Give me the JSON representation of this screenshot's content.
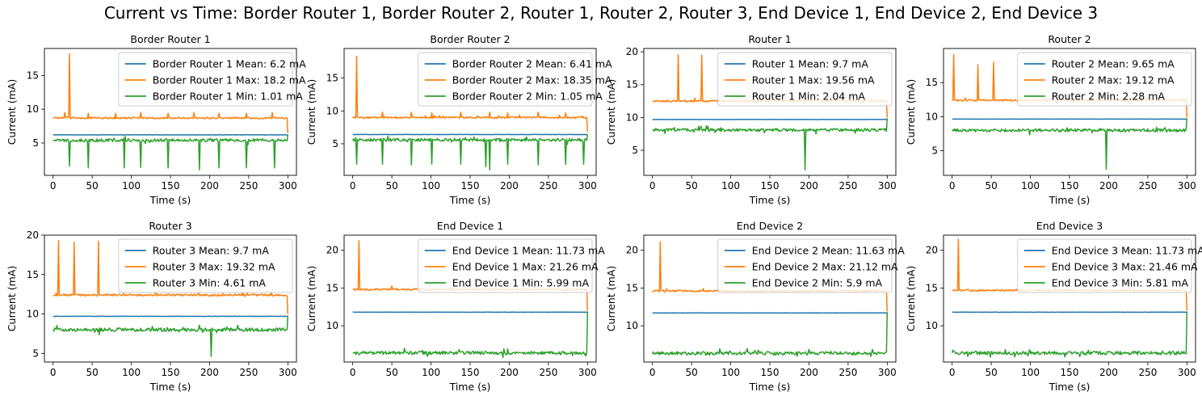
{
  "suptitle": "Current vs Time: Border Router 1, Border Router 2, Router 1, Router 2, Router 3, End Device 1, End Device 2, End Device 3",
  "colors": {
    "mean": "#1f77b4",
    "max": "#ff7f0e",
    "min": "#2ca02c"
  },
  "chart_data": [
    {
      "type": "line",
      "title": "Border Router 1",
      "xlabel": "Time (s)",
      "ylabel": "Current (mA)",
      "xlim": [
        -11,
        311
      ],
      "ylim": [
        0.2,
        19.0
      ],
      "xticks": [
        0,
        50,
        100,
        150,
        200,
        250,
        300
      ],
      "yticks": [
        5,
        10,
        15
      ],
      "legend_position": "upper-right",
      "series": [
        {
          "name": "Border Router 1 Mean: 6.2 mA",
          "stat": "mean",
          "base": 6.2,
          "end_value": 6.2
        },
        {
          "name": "Border Router 1 Max: 18.2 mA",
          "stat": "max",
          "base": 8.7,
          "spikes": [
            [
              21,
              18.2
            ]
          ],
          "bumps": [
            [
              15,
              9.5
            ],
            [
              45,
              9.4
            ],
            [
              80,
              9.4
            ],
            [
              112,
              9.5
            ],
            [
              147,
              9.4
            ],
            [
              180,
              9.5
            ],
            [
              212,
              9.4
            ],
            [
              247,
              9.4
            ],
            [
              280,
              9.5
            ]
          ],
          "end_value": 6.5
        },
        {
          "name": "Border Router 1 Min: 1.01 mA",
          "stat": "min",
          "base": 5.4,
          "dips": [
            [
              21,
              1.6
            ],
            [
              45,
              1.3
            ],
            [
              91,
              1.3
            ],
            [
              112,
              1.4
            ],
            [
              147,
              1.3
            ],
            [
              187,
              1.01
            ],
            [
              212,
              1.3
            ],
            [
              247,
              1.3
            ],
            [
              283,
              1.3
            ]
          ],
          "end_value": 6.2
        }
      ]
    },
    {
      "type": "line",
      "title": "Border Router 2",
      "xlabel": "Time (s)",
      "ylabel": "Current (mA)",
      "xlim": [
        -11,
        311
      ],
      "ylim": [
        0.2,
        19.5
      ],
      "xticks": [
        0,
        50,
        100,
        150,
        200,
        250,
        300
      ],
      "yticks": [
        5,
        10,
        15
      ],
      "legend_position": "upper-right",
      "series": [
        {
          "name": "Border Router 2 Mean: 6.41 mA",
          "stat": "mean",
          "base": 6.41,
          "end_value": 6.41
        },
        {
          "name": "Border Router 2 Max: 18.35 mA",
          "stat": "max",
          "base": 9.0,
          "spikes": [
            [
              5,
              18.35
            ]
          ],
          "bumps": [
            [
              38,
              9.8
            ],
            [
              75,
              9.8
            ],
            [
              101,
              9.7
            ],
            [
              138,
              9.8
            ],
            [
              175,
              9.8
            ],
            [
              198,
              9.7
            ],
            [
              237,
              9.8
            ],
            [
              272,
              9.7
            ]
          ],
          "end_value": 6.8
        },
        {
          "name": "Border Router 2 Min: 1.05 mA",
          "stat": "min",
          "base": 5.6,
          "dips": [
            [
              5,
              1.9
            ],
            [
              38,
              1.9
            ],
            [
              75,
              1.8
            ],
            [
              101,
              1.9
            ],
            [
              138,
              1.9
            ],
            [
              170,
              1.5
            ],
            [
              175,
              1.05
            ],
            [
              198,
              1.9
            ],
            [
              237,
              1.8
            ],
            [
              272,
              1.9
            ],
            [
              295,
              1.9
            ]
          ],
          "end_value": 6.4
        }
      ]
    },
    {
      "type": "line",
      "title": "Router 1",
      "xlabel": "Time (s)",
      "ylabel": "Current (mA)",
      "xlim": [
        -11,
        311
      ],
      "ylim": [
        1.2,
        20.5
      ],
      "xticks": [
        0,
        50,
        100,
        150,
        200,
        250,
        300
      ],
      "yticks": [
        5,
        10,
        15,
        20
      ],
      "legend_position": "upper-right",
      "series": [
        {
          "name": "Router 1 Mean: 9.7 mA",
          "stat": "mean",
          "base": 9.7,
          "end_value": 9.7
        },
        {
          "name": "Router 1 Max: 19.56 mA",
          "stat": "max",
          "base": 12.5,
          "spikes": [
            [
              33,
              19.56
            ],
            [
              63,
              19.5
            ]
          ],
          "bumps": [],
          "end_value": 10.0
        },
        {
          "name": "Router 1 Min: 2.04 mA",
          "stat": "min",
          "base": 8.1,
          "dips": [
            [
              195,
              2.04
            ]
          ],
          "end_value": 9.9
        }
      ]
    },
    {
      "type": "line",
      "title": "Router 2",
      "xlabel": "Time (s)",
      "ylabel": "Current (mA)",
      "xlim": [
        -11,
        311
      ],
      "ylim": [
        1.4,
        20.0
      ],
      "xticks": [
        0,
        50,
        100,
        150,
        200,
        250,
        300
      ],
      "yticks": [
        5,
        10,
        15
      ],
      "legend_position": "upper-right",
      "series": [
        {
          "name": "Router 2 Mean: 9.65 mA",
          "stat": "mean",
          "base": 9.65,
          "end_value": 9.65
        },
        {
          "name": "Router 2 Max: 19.12 mA",
          "stat": "max",
          "base": 12.4,
          "spikes": [
            [
              2,
              19.12
            ],
            [
              33,
              17.6
            ],
            [
              53,
              18.0
            ]
          ],
          "bumps": [],
          "end_value": 9.9
        },
        {
          "name": "Router 2 Min: 2.28 mA",
          "stat": "min",
          "base": 8.0,
          "dips": [
            [
              197,
              2.28
            ]
          ],
          "end_value": 9.8
        }
      ]
    },
    {
      "type": "line",
      "title": "Router 3",
      "xlabel": "Time (s)",
      "ylabel": "Current (mA)",
      "xlim": [
        -11,
        311
      ],
      "ylim": [
        3.9,
        20.0
      ],
      "xticks": [
        0,
        50,
        100,
        150,
        200,
        250,
        300
      ],
      "yticks": [
        5,
        10,
        15,
        20
      ],
      "legend_position": "upper-right",
      "series": [
        {
          "name": "Router 3 Mean: 9.7 mA",
          "stat": "mean",
          "base": 9.7,
          "end_value": 9.7
        },
        {
          "name": "Router 3 Max: 19.32 mA",
          "stat": "max",
          "base": 12.4,
          "spikes": [
            [
              7,
              19.32
            ],
            [
              27,
              19.1
            ],
            [
              58,
              19.2
            ]
          ],
          "bumps": [],
          "end_value": 10.0
        },
        {
          "name": "Router 3 Min: 4.61 mA",
          "stat": "min",
          "base": 8.0,
          "dips": [
            [
              202,
              4.61
            ]
          ],
          "end_value": 9.8
        }
      ]
    },
    {
      "type": "line",
      "title": "End Device 1",
      "xlabel": "Time (s)",
      "ylabel": "Current (mA)",
      "xlim": [
        -11,
        311
      ],
      "ylim": [
        5.2,
        22.0
      ],
      "xticks": [
        0,
        50,
        100,
        150,
        200,
        250,
        300
      ],
      "yticks": [
        10,
        15,
        20
      ],
      "legend_position": "upper-right",
      "series": [
        {
          "name": "End Device 1 Mean: 11.73 mA",
          "stat": "mean",
          "base": 11.8,
          "end_value": 11.7
        },
        {
          "name": "End Device 1 Max: 21.26 mA",
          "stat": "max",
          "base": 14.8,
          "spikes": [
            [
              8,
              21.26
            ]
          ],
          "bumps": [],
          "end_value": 12.0
        },
        {
          "name": "End Device 1 Min: 5.99 mA",
          "stat": "min",
          "base": 6.4,
          "dips": [],
          "end_value": 11.9
        }
      ]
    },
    {
      "type": "line",
      "title": "End Device 2",
      "xlabel": "Time (s)",
      "ylabel": "Current (mA)",
      "xlim": [
        -11,
        311
      ],
      "ylim": [
        5.2,
        22.0
      ],
      "xticks": [
        0,
        50,
        100,
        150,
        200,
        250,
        300
      ],
      "yticks": [
        10,
        15,
        20
      ],
      "legend_position": "upper-right",
      "series": [
        {
          "name": "End Device 2 Mean: 11.63 mA",
          "stat": "mean",
          "base": 11.7,
          "end_value": 11.6
        },
        {
          "name": "End Device 2 Max: 21.12 mA",
          "stat": "max",
          "base": 14.6,
          "spikes": [
            [
              10,
              21.12
            ]
          ],
          "bumps": [],
          "end_value": 11.9
        },
        {
          "name": "End Device 2 Min: 5.9 mA",
          "stat": "min",
          "base": 6.35,
          "dips": [],
          "end_value": 11.8
        }
      ]
    },
    {
      "type": "line",
      "title": "End Device 3",
      "xlabel": "Time (s)",
      "ylabel": "Current (mA)",
      "xlim": [
        -11,
        311
      ],
      "ylim": [
        5.2,
        22.0
      ],
      "xticks": [
        0,
        50,
        100,
        150,
        200,
        250,
        300
      ],
      "yticks": [
        10,
        15,
        20
      ],
      "legend_position": "upper-right",
      "series": [
        {
          "name": "End Device 3 Mean: 11.73 mA",
          "stat": "mean",
          "base": 11.8,
          "end_value": 11.7
        },
        {
          "name": "End Device 3 Max: 21.46 mA",
          "stat": "max",
          "base": 14.7,
          "spikes": [
            [
              8,
              21.46
            ]
          ],
          "bumps": [],
          "end_value": 12.0
        },
        {
          "name": "End Device 3 Min: 5.81 mA",
          "stat": "min",
          "base": 6.4,
          "dips": [],
          "end_value": 11.9
        }
      ]
    }
  ]
}
